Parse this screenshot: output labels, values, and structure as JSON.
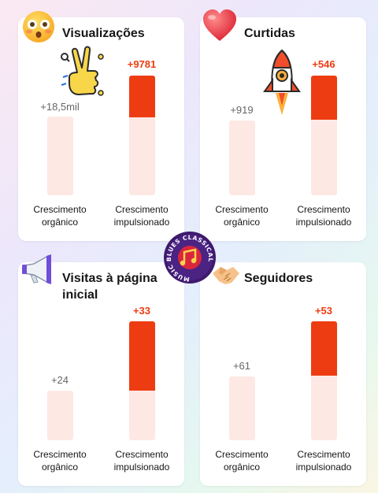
{
  "colors": {
    "organic_bar": "#fde8e4",
    "boosted_bar": "#ee3c12",
    "boosted_text": "#ee3c12"
  },
  "labels": {
    "organic": "Crescimento orgânico",
    "boosted": "Crescimento impulsionado"
  },
  "cards": [
    {
      "title": "Visualizações",
      "icon": "astonished-face-emoji-icon",
      "organic_value": "+18,5mil",
      "boosted_value": "+9781",
      "boosted_fraction": 0.35
    },
    {
      "title": "Curtidas",
      "icon": "heart-emoji-icon",
      "organic_value": "+919",
      "boosted_value": "+546",
      "boosted_fraction": 0.37
    },
    {
      "title": "Visitas à página inicial",
      "icon": "megaphone-icon",
      "organic_value": "+24",
      "boosted_value": "+33",
      "boosted_fraction": 0.58
    },
    {
      "title": "Seguidores",
      "icon": "handshake-icon",
      "organic_value": "+61",
      "boosted_value": "+53",
      "boosted_fraction": 0.46
    }
  ],
  "stickers": [
    {
      "icon": "peace-hand-sticker-icon"
    },
    {
      "icon": "rocket-sticker-icon"
    },
    {
      "icon": "music-blues-classical-logo-icon",
      "text": "MUSIC BLUES CLASSICAL"
    }
  ]
}
